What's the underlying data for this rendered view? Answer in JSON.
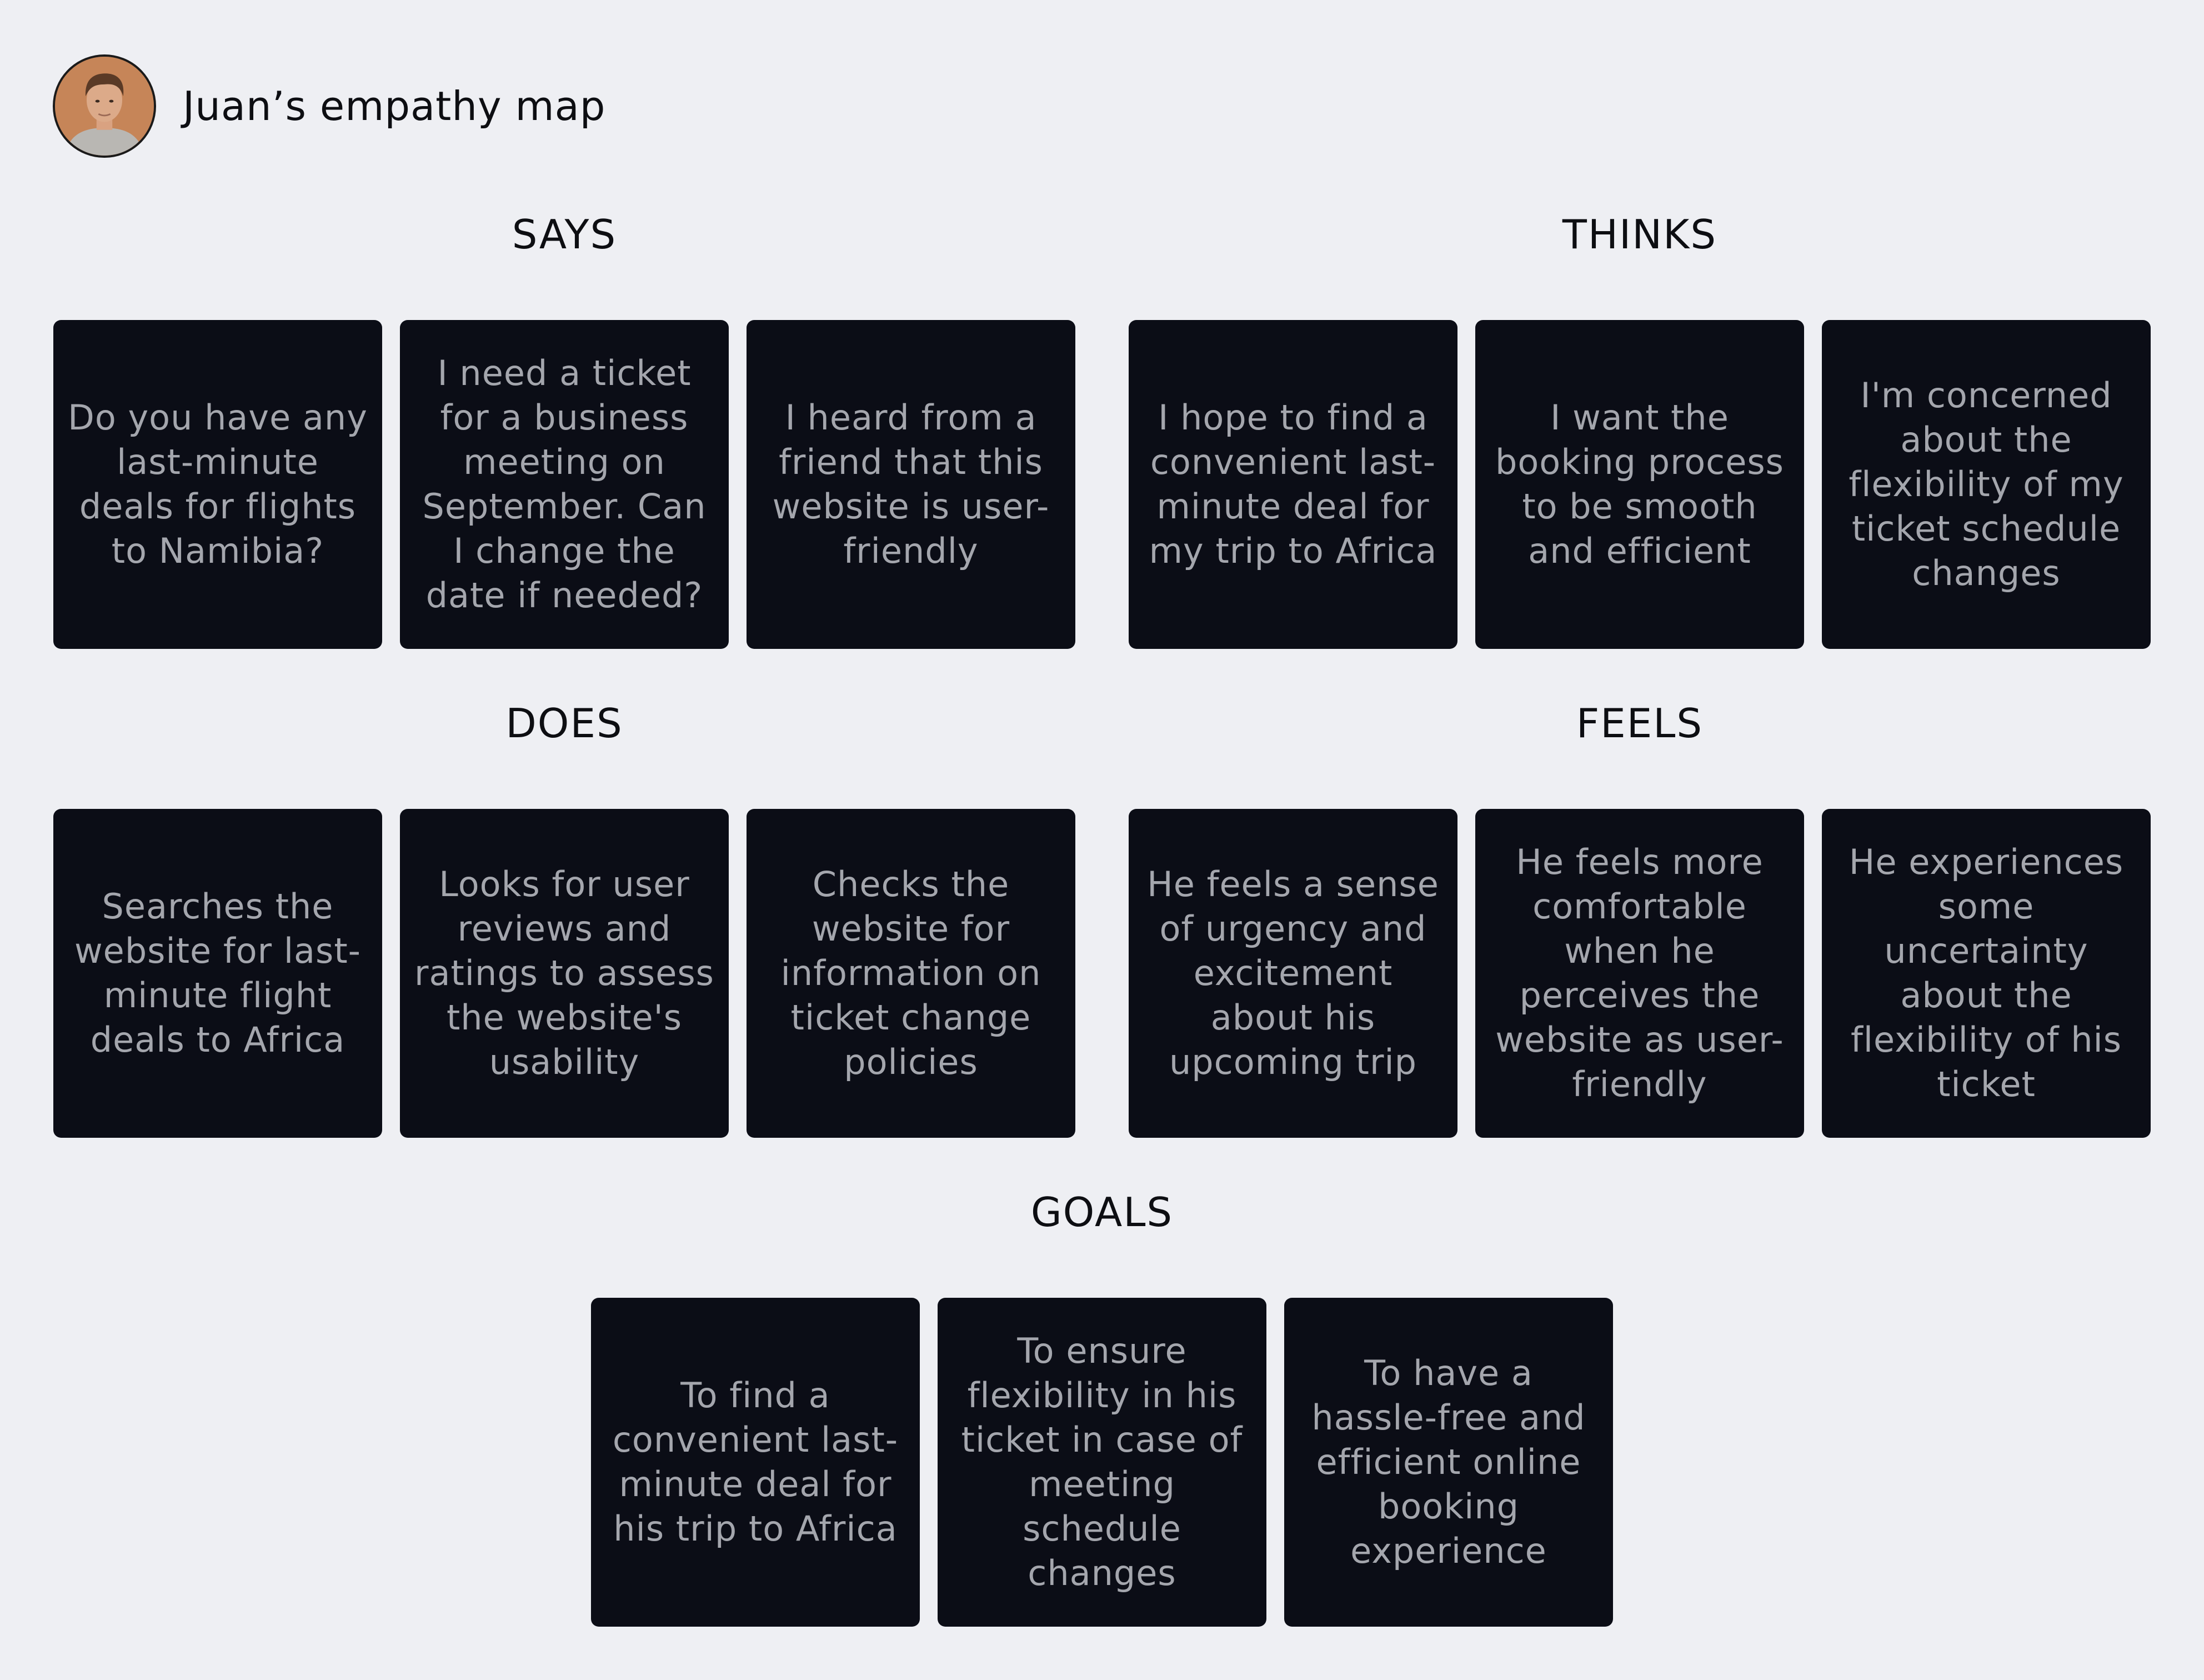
{
  "header": {
    "title": "Juan’s empathy map",
    "avatar_icon": "person-portrait-icon"
  },
  "sections": {
    "says": {
      "label": "SAYS",
      "cards": [
        "Do you have any last-minute deals for flights to Namibia?",
        "I need a ticket for a business meeting on September. Can I change the date if needed?",
        "I heard from a friend that this website is user-friendly"
      ]
    },
    "thinks": {
      "label": "THINKS",
      "cards": [
        "I hope to find a convenient last-minute deal for my trip to Africa",
        "I want the booking process to be smooth and efficient",
        "I'm concerned about the flexibility of my ticket  schedule changes"
      ]
    },
    "does": {
      "label": "DOES",
      "cards": [
        "Searches the website for last-minute flight deals to Africa",
        "Looks for user reviews and ratings to assess the website's usability",
        "Checks the website for information on ticket change policies"
      ]
    },
    "feels": {
      "label": "FEELS",
      "cards": [
        "He feels a sense of urgency and excitement about his upcoming trip",
        "He feels more comfortable when he perceives the website as user-friendly",
        "He experiences some uncertainty about the flexibility of his ticket"
      ]
    },
    "goals": {
      "label": "GOALS",
      "cards": [
        "To find a convenient last-minute deal for his trip to Africa",
        "To ensure flexibility in his ticket in case of meeting schedule changes",
        "To have a hassle-free and efficient online booking experience"
      ]
    }
  },
  "colors": {
    "background": "#eeeff3",
    "card": "#0b0d16",
    "card_text": "#a4a6ad",
    "heading_text": "#0d0e12"
  }
}
